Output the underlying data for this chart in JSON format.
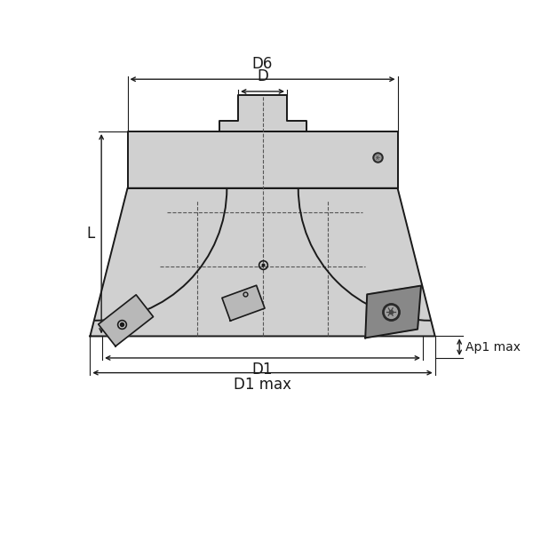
{
  "bg_color": "#ffffff",
  "body_fill": "#d0d0d0",
  "body_edge": "#1a1a1a",
  "insert_fill_light": "#b8b8b8",
  "insert_fill_dark": "#888888",
  "dashed_color": "#555555",
  "line_color": "#1a1a1a",
  "labels": {
    "D6": "D6",
    "D": "D",
    "D1": "D1",
    "D1max": "D1 max",
    "L": "L",
    "Ap1max": "Ap1 max"
  },
  "figsize": [
    6.0,
    6.0
  ],
  "dpi": 100
}
